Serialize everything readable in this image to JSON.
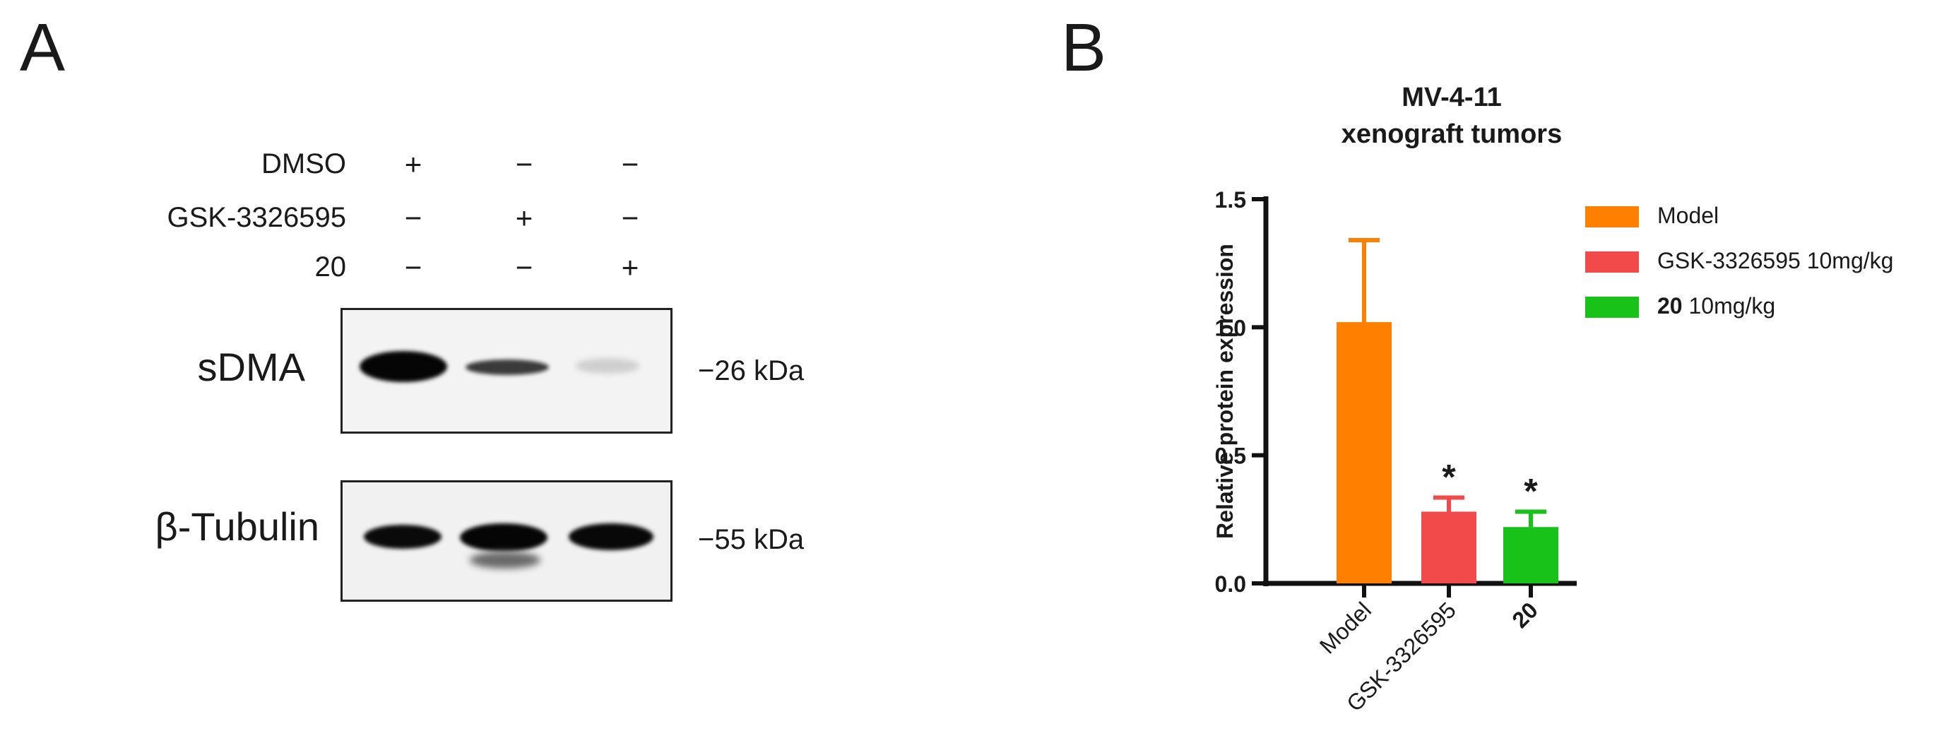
{
  "panel_a": {
    "letter": "A",
    "treatments": [
      {
        "label": "DMSO",
        "signs": [
          "+",
          "−",
          "−"
        ]
      },
      {
        "label": "GSK-3326595",
        "signs": [
          "−",
          "+",
          "−"
        ]
      },
      {
        "label": "20",
        "signs": [
          "−",
          "−",
          "+"
        ]
      }
    ],
    "blots": [
      {
        "name": "sDMA",
        "marker": "−26 kDa",
        "band_intensity": [
          1.0,
          0.45,
          0.12
        ]
      },
      {
        "name": "β-Tubulin",
        "marker": "−55 kDa",
        "band_intensity": [
          0.95,
          1.0,
          0.97
        ]
      }
    ]
  },
  "panel_b": {
    "letter": "B"
  },
  "chart_data": {
    "type": "bar",
    "title": "MV-4-11\nxenograft tumors",
    "title_lines": [
      "MV-4-11",
      "xenograft tumors"
    ],
    "categories": [
      "Model",
      "GSK-3326595",
      "20"
    ],
    "values": [
      1.02,
      0.28,
      0.22
    ],
    "errors": [
      0.32,
      0.055,
      0.06
    ],
    "significance": [
      "",
      "*",
      "*"
    ],
    "colors": [
      "#ff8000",
      "#f24a4a",
      "#19c219"
    ],
    "xlabel": "",
    "ylabel": "Relative protein expression",
    "ylim": [
      0,
      1.5
    ],
    "yticks": [
      0.0,
      0.5,
      1.0,
      1.5
    ],
    "ytick_labels": [
      "0.0",
      "0.5",
      "1.0",
      "1.5"
    ],
    "legend": {
      "placement": "right",
      "entries": [
        {
          "bold": "",
          "text": "Model",
          "color": "#ff8000"
        },
        {
          "bold": "",
          "text": "GSK-3326595 10mg/kg",
          "color": "#f24a4a"
        },
        {
          "bold": "20",
          "text": " 10mg/kg",
          "color": "#19c219"
        }
      ]
    },
    "bold_categories": [
      "20"
    ]
  }
}
